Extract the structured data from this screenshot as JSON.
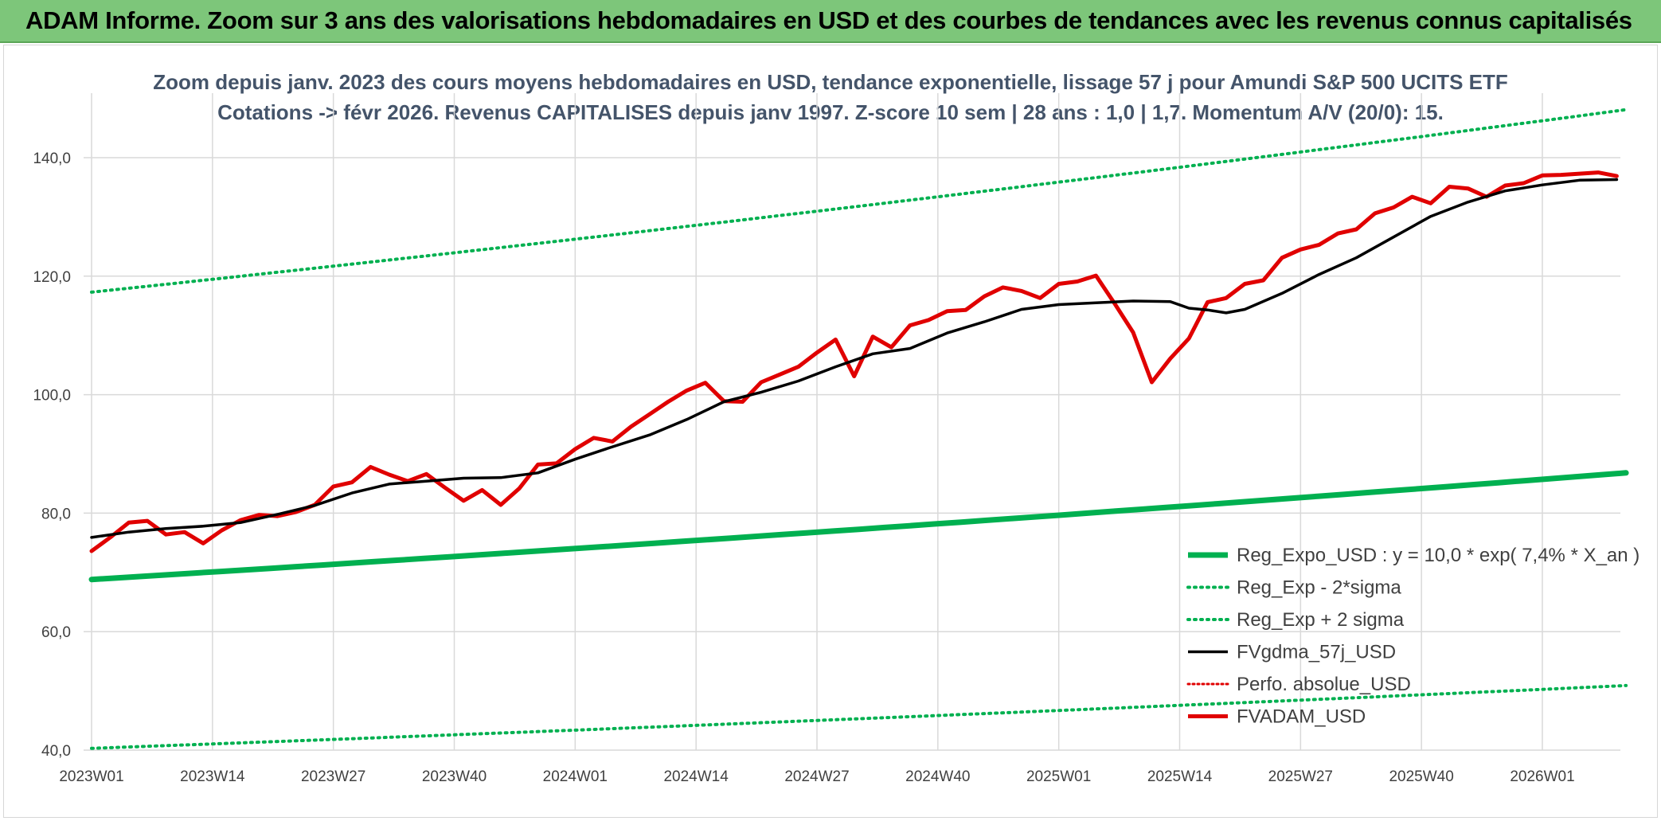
{
  "banner": {
    "title": "ADAM Informe. Zoom sur 3 ans des valorisations hebdomadaires en USD et des courbes de tendances avec les revenus connus capitalisés"
  },
  "colors": {
    "banner_bg": "#7dc67a",
    "trend_green": "#00b050",
    "price_red": "#e00000",
    "mma_black": "#000000",
    "perfo_red": "#e00000"
  },
  "chart_data": {
    "type": "line",
    "title_line1": "Zoom depuis janv. 2023 des cours moyens hebdomadaires en USD, tendance exponentielle, lissage 57 j pour Amundi S&P 500 UCITS ETF",
    "title_line2": "Cotations -> févr 2026. Revenus CAPITALISES depuis janv 1997. Z-score 10 sem | 28 ans : 1,0 | 1,7. Momentum A/V (20/0): 15.",
    "x_tick_labels": [
      "2023W01",
      "2023W14",
      "2023W27",
      "2023W40",
      "2024W01",
      "2024W14",
      "2024W27",
      "2024W40",
      "2025W01",
      "2025W14",
      "2025W27",
      "2025W40",
      "2026W01"
    ],
    "x_range_weeks": [
      0,
      165
    ],
    "y_ticks": [
      "40,0",
      "60,0",
      "80,0",
      "100,0",
      "120,0",
      "140,0"
    ],
    "y_tick_values": [
      40,
      60,
      80,
      100,
      120,
      140
    ],
    "ylim": [
      40,
      150
    ],
    "grid": true,
    "legend_position": "bottom-right",
    "series": [
      {
        "name": "Reg_Expo_USD : y = 10,0 * exp( 7,4% *  X_an )",
        "style": "solid-thick-green",
        "x": [
          0,
          165
        ],
        "values": [
          68.8,
          86.8
        ],
        "growth": "exponential"
      },
      {
        "name": "Reg_Exp - 2*sigma",
        "style": "dotted-green",
        "x": [
          0,
          165
        ],
        "values": [
          40.3,
          50.9
        ],
        "growth": "exponential"
      },
      {
        "name": "Reg_Exp + 2 sigma",
        "style": "dotted-green",
        "x": [
          0,
          165
        ],
        "values": [
          117.3,
          148.1
        ],
        "growth": "exponential"
      },
      {
        "name": "FVgdma_57j_USD",
        "style": "solid-black",
        "x": [
          0,
          4,
          8,
          12,
          16,
          20,
          24,
          28,
          32,
          36,
          40,
          44,
          48,
          52,
          56,
          60,
          64,
          68,
          72,
          76,
          80,
          84,
          88,
          92,
          96,
          100,
          104,
          108,
          112,
          116,
          118,
          120,
          122,
          124,
          128,
          132,
          136,
          140,
          144,
          148,
          152,
          156,
          160,
          164
        ],
        "values": [
          75.9,
          76.8,
          77.4,
          77.8,
          78.4,
          79.8,
          81.3,
          83.4,
          84.9,
          85.4,
          85.9,
          86.0,
          86.8,
          89.1,
          91.2,
          93.2,
          95.8,
          98.8,
          100.4,
          102.3,
          104.7,
          106.9,
          107.8,
          110.4,
          112.3,
          114.4,
          115.2,
          115.5,
          115.8,
          115.7,
          114.6,
          114.3,
          113.8,
          114.4,
          117.1,
          120.3,
          123.1,
          126.6,
          130.1,
          132.5,
          134.4,
          135.4,
          136.2,
          136.3
        ]
      },
      {
        "name": "Perfo. absolue_USD",
        "style": "dotted-red",
        "x": [],
        "values": []
      },
      {
        "name": "FVADAM_USD",
        "style": "solid-thick-red",
        "x": [
          0,
          2,
          4,
          6,
          8,
          10,
          12,
          14,
          16,
          18,
          20,
          22,
          24,
          26,
          28,
          30,
          32,
          34,
          36,
          38,
          40,
          42,
          44,
          46,
          48,
          50,
          52,
          54,
          56,
          58,
          60,
          62,
          64,
          66,
          68,
          70,
          72,
          74,
          76,
          78,
          80,
          82,
          84,
          86,
          88,
          90,
          92,
          94,
          96,
          98,
          100,
          102,
          104,
          106,
          108,
          110,
          112,
          114,
          116,
          118,
          120,
          122,
          124,
          126,
          128,
          130,
          132,
          134,
          136,
          138,
          140,
          142,
          144,
          146,
          148,
          150,
          152,
          154,
          156,
          158,
          160,
          162,
          164
        ],
        "values": [
          73.6,
          75.9,
          78.4,
          78.7,
          76.4,
          76.8,
          74.9,
          77.1,
          78.8,
          79.7,
          79.5,
          80.2,
          81.4,
          84.5,
          85.2,
          87.8,
          86.5,
          85.4,
          86.6,
          84.3,
          82.1,
          83.9,
          81.4,
          84.2,
          88.2,
          88.4,
          90.8,
          92.7,
          92.1,
          94.6,
          96.7,
          98.8,
          100.7,
          102.0,
          98.9,
          98.8,
          102.1,
          103.4,
          104.7,
          107.1,
          109.3,
          103.1,
          109.8,
          108.0,
          111.7,
          112.6,
          114.1,
          114.3,
          116.6,
          118.1,
          117.5,
          116.3,
          118.7,
          119.1,
          120.1,
          115.4,
          110.5,
          102.1,
          106.1,
          109.5,
          115.6,
          116.3,
          118.7,
          119.3,
          123.1,
          124.5,
          125.3,
          127.2,
          127.9,
          130.6,
          131.6,
          133.4,
          132.3,
          135.1,
          134.8,
          133.4,
          135.3,
          135.7,
          137.0,
          137.1,
          137.3,
          137.5,
          136.9
        ]
      }
    ]
  }
}
